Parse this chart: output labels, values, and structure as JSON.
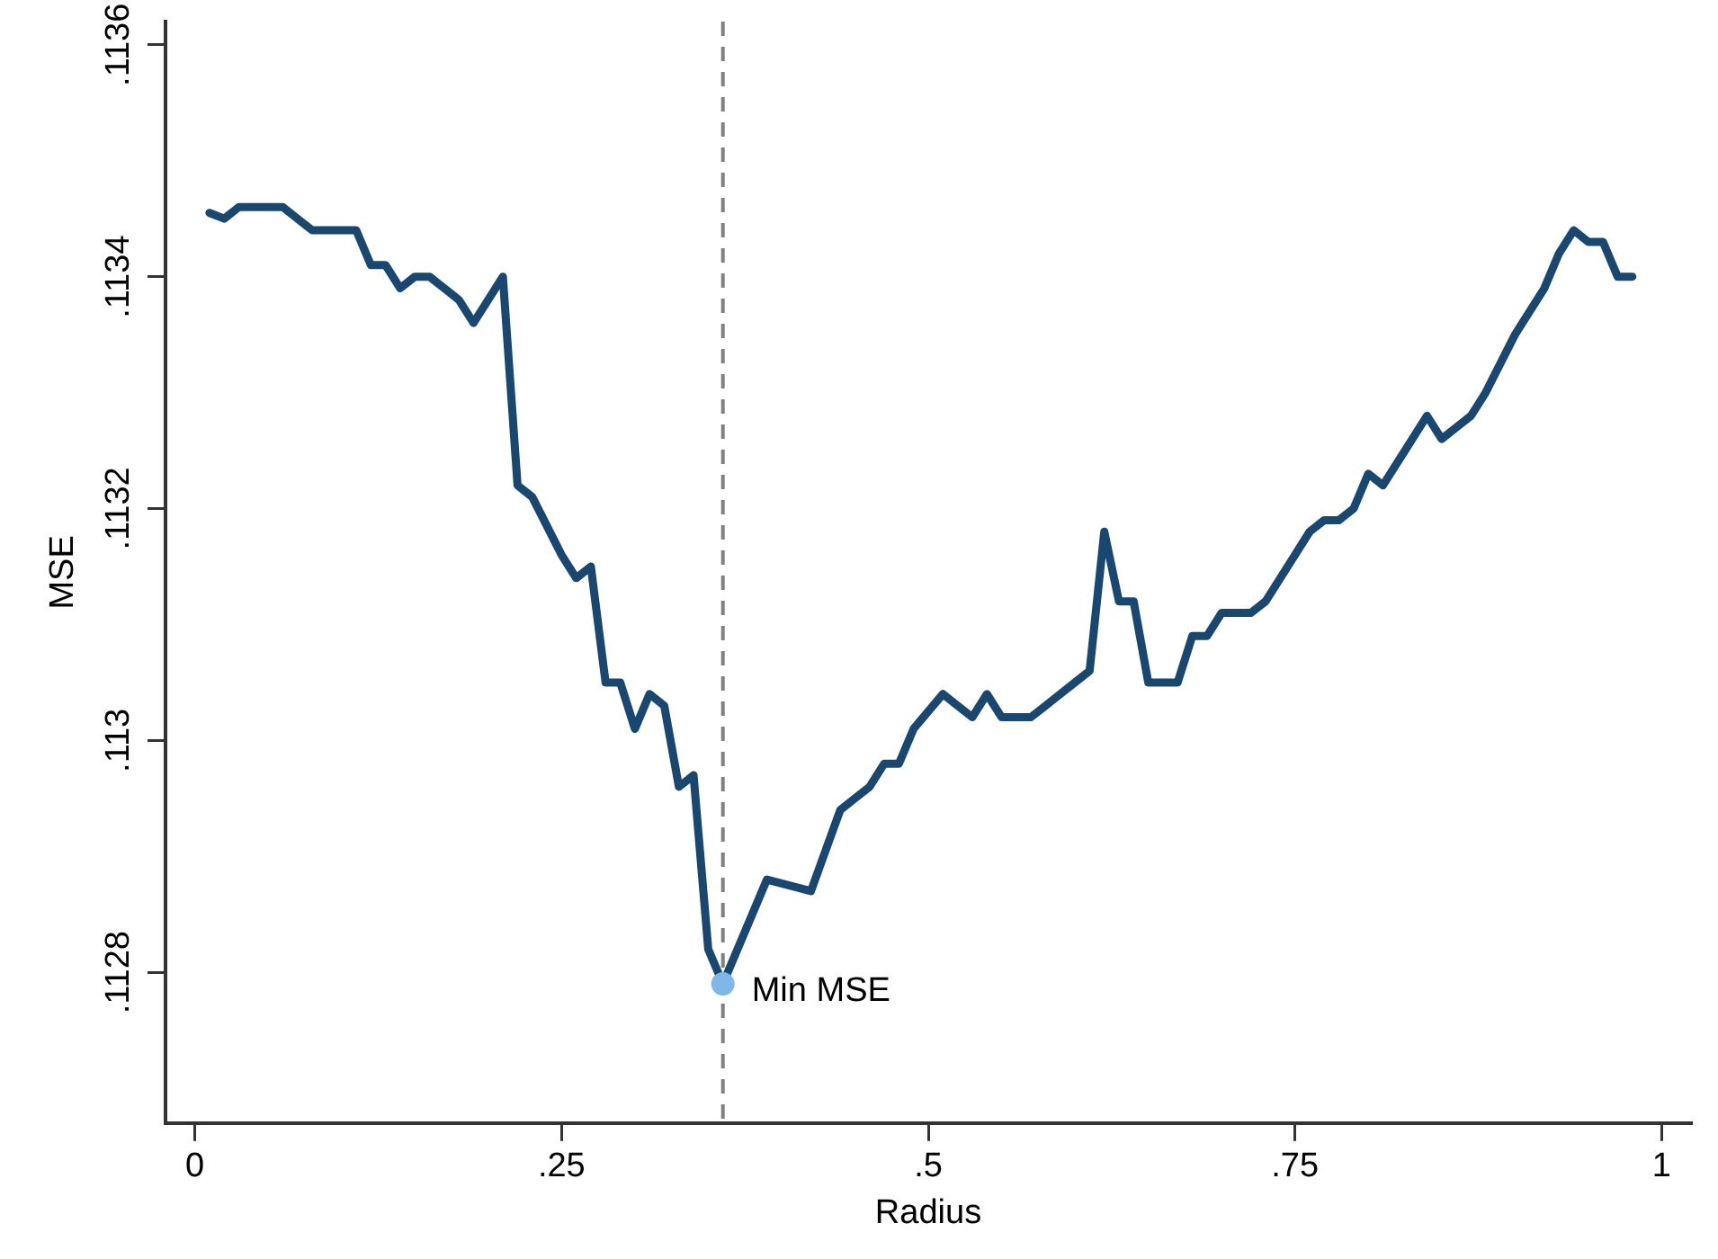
{
  "chart_data": {
    "type": "line",
    "xlabel": "Radius",
    "ylabel": "MSE",
    "xlim": [
      -0.02,
      1.02
    ],
    "xticks": [
      0,
      {
        "value": 0.25,
        "label": ".25"
      },
      {
        "value": 0.5,
        "label": ".5"
      },
      {
        "value": 0.75,
        "label": ".75"
      },
      1
    ],
    "ylim": [
      0.11267,
      0.11362
    ],
    "yticks": [
      {
        "value": 0.1128,
        "label": ".1128"
      },
      {
        "value": 0.113,
        "label": ".113"
      },
      {
        "value": 0.1132,
        "label": ".1132"
      },
      {
        "value": 0.1134,
        "label": ".1134"
      },
      {
        "value": 0.1136,
        "label": ".1136"
      }
    ],
    "grid": false,
    "legend": false,
    "marker": "none",
    "line_style": "solid",
    "series": [
      {
        "color": "#1a476f",
        "x": [
          0.01,
          0.02,
          0.03,
          0.05,
          0.06,
          0.07,
          0.08,
          0.11,
          0.12,
          0.13,
          0.14,
          0.15,
          0.16,
          0.17,
          0.18,
          0.19,
          0.21,
          0.22,
          0.23,
          0.25,
          0.26,
          0.27,
          0.28,
          0.29,
          0.3,
          0.31,
          0.32,
          0.33,
          0.34,
          0.35,
          0.36,
          0.38,
          0.39,
          0.42,
          0.44,
          0.45,
          0.46,
          0.47,
          0.48,
          0.49,
          0.51,
          0.52,
          0.53,
          0.54,
          0.55,
          0.56,
          0.57,
          0.58,
          0.59,
          0.6,
          0.61,
          0.62,
          0.63,
          0.64,
          0.65,
          0.66,
          0.67,
          0.68,
          0.69,
          0.7,
          0.71,
          0.72,
          0.73,
          0.74,
          0.75,
          0.76,
          0.77,
          0.78,
          0.79,
          0.8,
          0.81,
          0.82,
          0.83,
          0.84,
          0.85,
          0.86,
          0.87,
          0.88,
          0.9,
          0.92,
          0.93,
          0.94,
          0.95,
          0.96,
          0.97,
          0.98
        ],
        "values": [
          0.113455,
          0.11345,
          0.11346,
          0.11346,
          0.11346,
          0.11345,
          0.11344,
          0.11344,
          0.11341,
          0.11341,
          0.11339,
          0.1134,
          0.1134,
          0.11339,
          0.11338,
          0.11336,
          0.1134,
          0.11322,
          0.11321,
          0.11316,
          0.11314,
          0.11315,
          0.11305,
          0.11305,
          0.11301,
          0.11304,
          0.11303,
          0.11296,
          0.11297,
          0.11282,
          0.11279,
          0.11285,
          0.11288,
          0.11287,
          0.11294,
          0.11295,
          0.11296,
          0.11298,
          0.11298,
          0.11301,
          0.11304,
          0.11303,
          0.11302,
          0.11304,
          0.11302,
          0.11302,
          0.11302,
          0.11303,
          0.11304,
          0.11305,
          0.11306,
          0.11318,
          0.11312,
          0.11312,
          0.11305,
          0.11305,
          0.11305,
          0.11309,
          0.11309,
          0.11311,
          0.11311,
          0.11311,
          0.11312,
          0.11314,
          0.11316,
          0.11318,
          0.11319,
          0.11319,
          0.1132,
          0.11323,
          0.11322,
          0.11324,
          0.11326,
          0.11328,
          0.11326,
          0.11327,
          0.11328,
          0.1133,
          0.11335,
          0.11339,
          0.11342,
          0.11344,
          0.11343,
          0.11343,
          0.1134,
          0.1134
        ]
      },
      {
        "type": "scatter",
        "color": "#7fb8e6",
        "marker": "circle",
        "x": [
          0.36
        ],
        "values": [
          0.11279
        ]
      }
    ],
    "ref_lines": [
      {
        "axis": "x",
        "value": 0.36,
        "color": "#808080",
        "line_style": "dashed"
      }
    ],
    "annotations": [
      {
        "text": "Min MSE",
        "x": 0.36,
        "y": 0.11279
      }
    ]
  }
}
